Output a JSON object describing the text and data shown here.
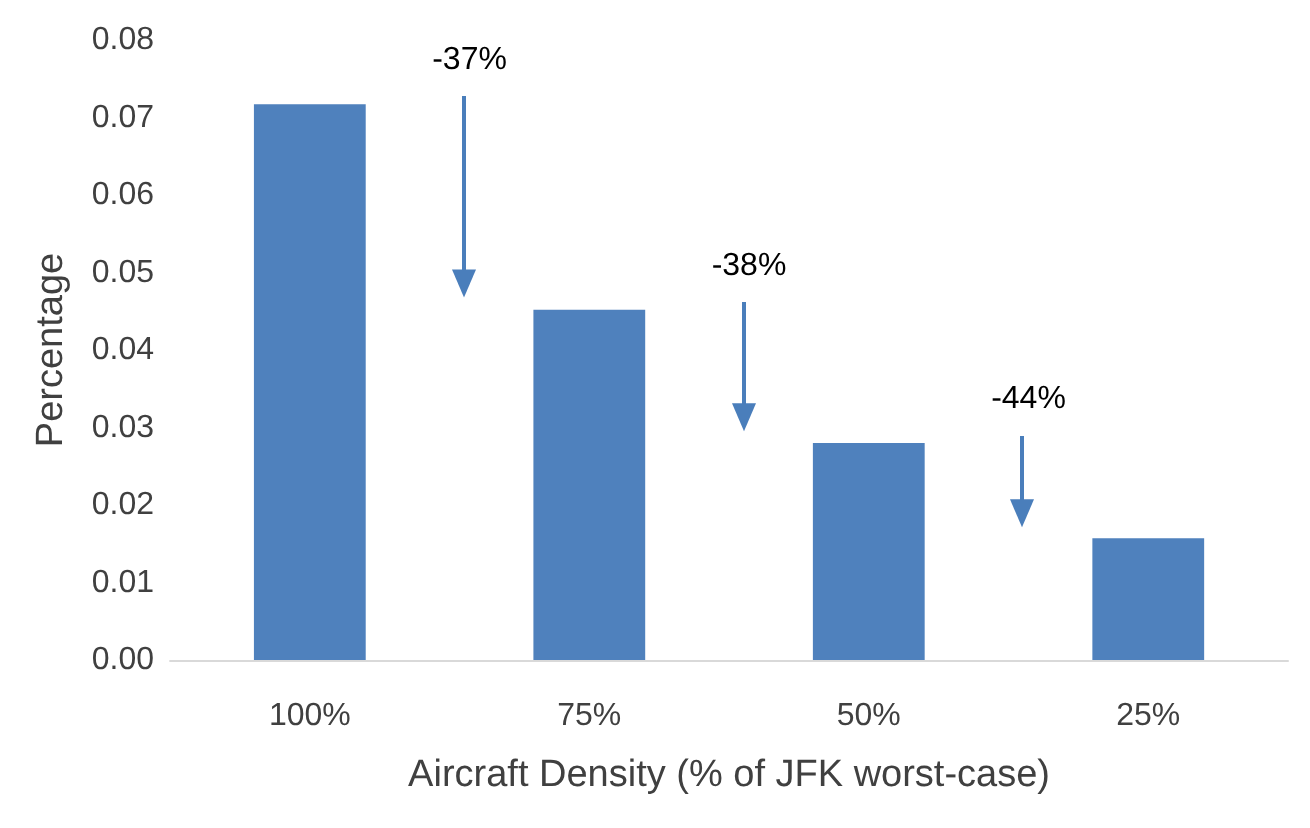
{
  "chart_data": {
    "type": "bar",
    "xlabel": "Aircraft Density (% of JFK worst-case)",
    "ylabel": "Percentage",
    "categories": [
      "100%",
      "75%",
      "50%",
      "25%"
    ],
    "values": [
      0.0717,
      0.0452,
      0.028,
      0.0157
    ],
    "color": "#4f81bd",
    "ylim": [
      0,
      0.08
    ],
    "yticks": [
      {
        "value": 0,
        "label": "0.00"
      },
      {
        "value": 0.01,
        "label": "0.01"
      },
      {
        "value": 0.02,
        "label": "0.02"
      },
      {
        "value": 0.03,
        "label": "0.03"
      },
      {
        "value": 0.04,
        "label": "0.04"
      },
      {
        "value": 0.05,
        "label": "0.05"
      },
      {
        "value": 0.06,
        "label": "0.06"
      },
      {
        "value": 0.07,
        "label": "0.07"
      },
      {
        "value": 0.08,
        "label": "0.08"
      }
    ],
    "annotations": [
      "-37%",
      "-38%",
      "-44%"
    ],
    "grid": false
  }
}
